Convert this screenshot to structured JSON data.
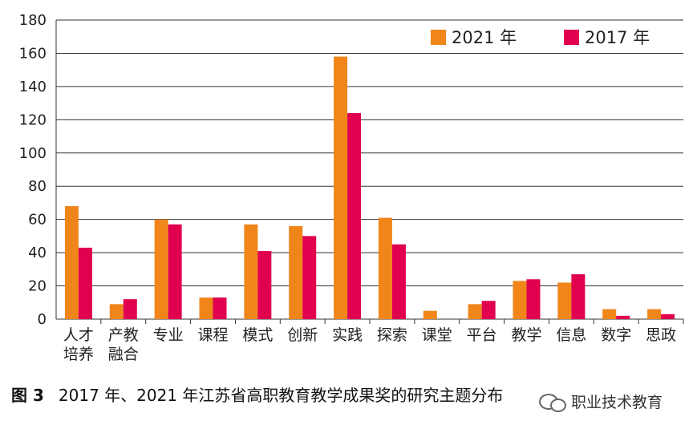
{
  "chart_data": {
    "type": "bar",
    "categories": [
      [
        "人才",
        "培养"
      ],
      [
        "产教",
        "融合"
      ],
      [
        "专业"
      ],
      [
        "课程"
      ],
      [
        "模式"
      ],
      [
        "创新"
      ],
      [
        "实践"
      ],
      [
        "探索"
      ],
      [
        "课堂"
      ],
      [
        "平台"
      ],
      [
        "教学"
      ],
      [
        "信息"
      ],
      [
        "数字"
      ],
      [
        "思政"
      ]
    ],
    "series": [
      {
        "name": "2021 年",
        "color": "#F08519",
        "values": [
          68,
          9,
          60,
          13,
          57,
          56,
          158,
          61,
          5,
          9,
          23,
          22,
          6,
          6
        ]
      },
      {
        "name": "2017 年",
        "color": "#E0004F",
        "values": [
          43,
          12,
          57,
          13,
          41,
          50,
          124,
          45,
          0,
          11,
          24,
          27,
          2,
          3
        ]
      }
    ],
    "ylim": [
      0,
      180
    ],
    "yticks": [
      0,
      20,
      40,
      60,
      80,
      100,
      120,
      140,
      160,
      180
    ],
    "grid": true,
    "legend": "top-right"
  },
  "caption": {
    "figure_no": "图 3",
    "text": "2017 年、2021 年江苏省高职教育教学成果奖的研究主题分布"
  },
  "watermark": {
    "text": "职业技术教育",
    "icon": "wechat-icon"
  }
}
